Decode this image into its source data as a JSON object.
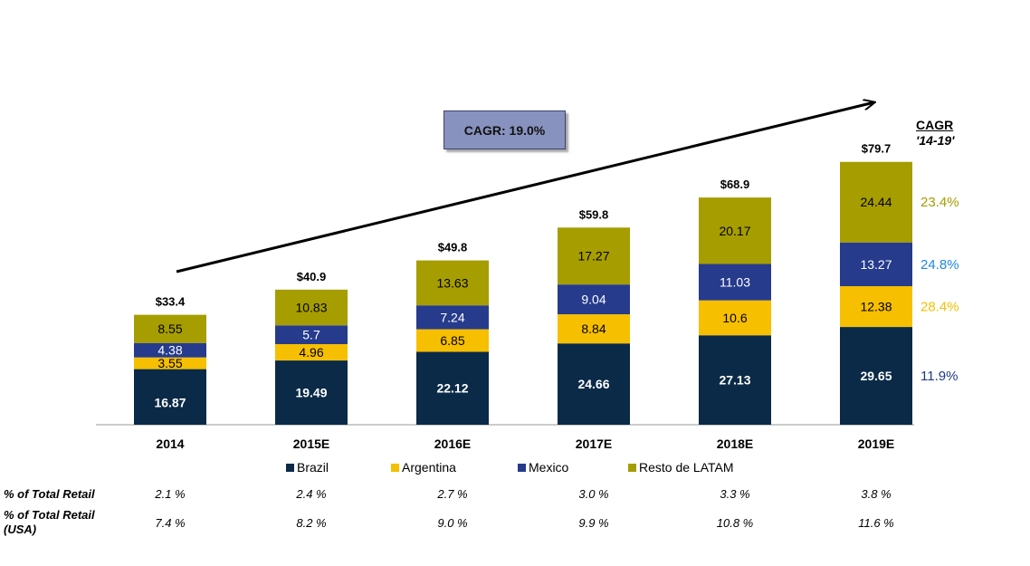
{
  "chart_data": {
    "type": "bar",
    "stacked": true,
    "categories": [
      "2014",
      "2015E",
      "2016E",
      "2017E",
      "2018E",
      "2019E"
    ],
    "series": [
      {
        "name": "Brazil",
        "color": "#0a2a47",
        "label_color": "#ffffff",
        "values": [
          16.87,
          19.49,
          22.12,
          24.66,
          27.13,
          29.65
        ]
      },
      {
        "name": "Argentina",
        "color": "#f6bf00",
        "label_color": "#000000",
        "values": [
          3.55,
          4.96,
          6.85,
          8.84,
          10.6,
          12.38
        ]
      },
      {
        "name": "Mexico",
        "color": "#263b8c",
        "label_color": "#ffffff",
        "values": [
          4.38,
          5.7,
          7.24,
          9.04,
          11.03,
          13.27
        ]
      },
      {
        "name": "Resto de LATAM",
        "color": "#a69d00",
        "label_color": "#000000",
        "values": [
          8.55,
          10.83,
          13.63,
          17.27,
          20.17,
          24.44
        ]
      }
    ],
    "totals": [
      "$33.4",
      "$40.9",
      "$49.8",
      "$59.8",
      "$68.9",
      "$79.7"
    ],
    "ylim": [
      0,
      85
    ],
    "grid": false,
    "legend_position": "bottom"
  },
  "annotation": {
    "cagr_box": "CAGR: 19.0%",
    "cagr_header": "CAGR",
    "cagr_period": "'14-19'"
  },
  "cagr_values": [
    {
      "series": "Resto de LATAM",
      "value": "23.4%",
      "color": "#a69d00"
    },
    {
      "series": "Mexico",
      "value": "24.8%",
      "color": "#1e88e5"
    },
    {
      "series": "Argentina",
      "value": "28.4%",
      "color": "#f6bf00"
    },
    {
      "series": "Brazil",
      "value": "11.9%",
      "color": "#1f3a8a"
    }
  ],
  "retail_share": {
    "label": "% of Total Retail",
    "values": [
      "2.1 %",
      "2.4 %",
      "2.7 %",
      "3.0 %",
      "3.3 %",
      "3.8 %"
    ]
  },
  "retail_share_usa": {
    "label_line1": "% of Total Retail",
    "label_line2": "(USA)",
    "values": [
      "7.4 %",
      "8.2 %",
      "9.0 %",
      "9.9 %",
      "10.8 %",
      "11.6 %"
    ]
  }
}
